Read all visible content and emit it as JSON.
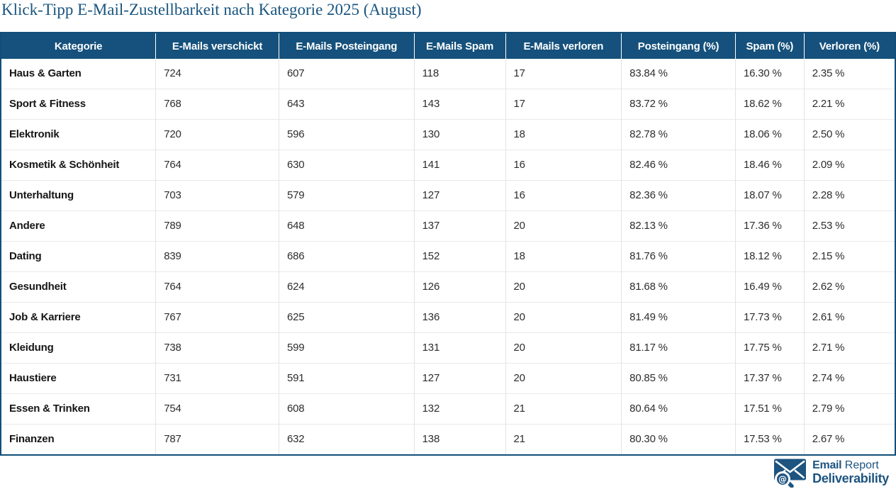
{
  "title": "Klick-Tipp E-Mail-Zustellbarkeit nach Kategorie 2025 (August)",
  "chart_data": {
    "type": "table",
    "columns": [
      "Kategorie",
      "E-Mails verschickt",
      "E-Mails Posteingang",
      "E-Mails Spam",
      "E-Mails verloren",
      "Posteingang (%)",
      "Spam (%)",
      "Verloren (%)"
    ],
    "rows": [
      [
        "Haus & Garten",
        "724",
        "607",
        "118",
        "17",
        "83.84 %",
        "16.30 %",
        "2.35 %"
      ],
      [
        "Sport & Fitness",
        "768",
        "643",
        "143",
        "17",
        "83.72 %",
        "18.62 %",
        "2.21 %"
      ],
      [
        "Elektronik",
        "720",
        "596",
        "130",
        "18",
        "82.78 %",
        "18.06 %",
        "2.50 %"
      ],
      [
        "Kosmetik & Schönheit",
        "764",
        "630",
        "141",
        "16",
        "82.46 %",
        "18.46 %",
        "2.09 %"
      ],
      [
        "Unterhaltung",
        "703",
        "579",
        "127",
        "16",
        "82.36 %",
        "18.07 %",
        "2.28 %"
      ],
      [
        "Andere",
        "789",
        "648",
        "137",
        "20",
        "82.13 %",
        "17.36 %",
        "2.53 %"
      ],
      [
        "Dating",
        "839",
        "686",
        "152",
        "18",
        "81.76 %",
        "18.12 %",
        "2.15 %"
      ],
      [
        "Gesundheit",
        "764",
        "624",
        "126",
        "20",
        "81.68 %",
        "16.49 %",
        "2.62 %"
      ],
      [
        "Job & Karriere",
        "767",
        "625",
        "136",
        "20",
        "81.49 %",
        "17.73 %",
        "2.61 %"
      ],
      [
        "Kleidung",
        "738",
        "599",
        "131",
        "20",
        "81.17 %",
        "17.75 %",
        "2.71 %"
      ],
      [
        "Haustiere",
        "731",
        "591",
        "127",
        "20",
        "80.85 %",
        "17.37 %",
        "2.74 %"
      ],
      [
        "Essen & Trinken",
        "754",
        "608",
        "132",
        "21",
        "80.64 %",
        "17.51 %",
        "2.79 %"
      ],
      [
        "Finanzen",
        "787",
        "632",
        "138",
        "21",
        "80.30 %",
        "17.53 %",
        "2.67 %"
      ]
    ]
  },
  "logo": {
    "icon": "envelope-magnifier-at-icon",
    "line1_bold": "Email",
    "line1_light": "Report",
    "line2": "Deliverability",
    "at_glyph": "@"
  },
  "colors": {
    "header_bg": "#15517c",
    "header_text": "#ffffff",
    "title_text": "#19557f",
    "table_outer_border": "#124d7a",
    "row_divider": "#e9e9e9",
    "column_divider": "#e3e3e3",
    "body_text": "#2d2d2d",
    "logo_blue": "#1d5480"
  }
}
